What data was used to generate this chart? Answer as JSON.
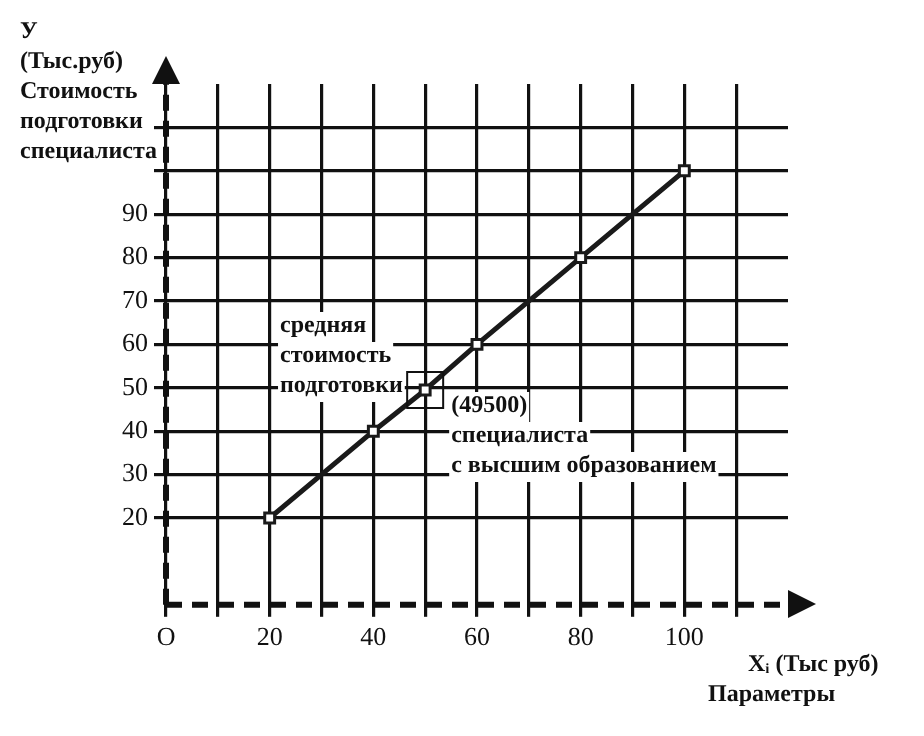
{
  "chart_data": {
    "type": "line",
    "xlabel": "Xᵢ (Тыс руб)\nПараметры",
    "ylabel": "У\n(Тыс.руб)\nСтоимость\nподготовки\nспециалиста",
    "x": [
      20,
      40,
      50,
      60,
      80,
      100
    ],
    "series": [
      {
        "color": "#1a1a1a",
        "values": [
          20,
          40,
          49.5,
          60,
          80,
          100
        ]
      }
    ],
    "xlim": [
      0,
      120
    ],
    "ylim": [
      0,
      120
    ],
    "xticks": [
      {
        "value": 0,
        "label": "O"
      },
      {
        "value": 10,
        "label": null
      },
      20,
      {
        "value": 30,
        "label": null
      },
      40,
      {
        "value": 50,
        "label": null
      },
      60,
      {
        "value": 70,
        "label": null
      },
      80,
      {
        "value": 90,
        "label": null
      },
      100,
      {
        "value": 110,
        "label": null
      }
    ],
    "yticks": [
      20,
      30,
      40,
      50,
      60,
      70,
      80,
      90,
      {
        "value": 100,
        "label": null
      },
      {
        "value": 110,
        "label": null
      }
    ],
    "annotations": [
      "средняя\nстоимость\nподготовки",
      {
        "text": "(49500)\nспециалиста\nс высшим образованием",
        "x": 50,
        "y": 49.5
      }
    ],
    "grid": true,
    "marker": "square",
    "line_style": "solid",
    "legend": false
  }
}
